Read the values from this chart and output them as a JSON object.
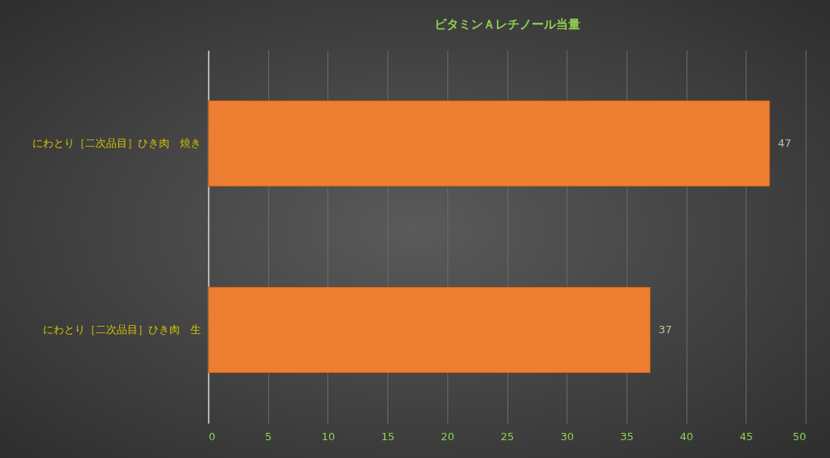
{
  "chart_data": {
    "type": "bar",
    "orientation": "horizontal",
    "title": "ビタミンＡレチノール当量",
    "categories": [
      "にわとり［二次品目］ひき肉　焼き",
      "にわとり［二次品目］ひき肉　生"
    ],
    "values": [
      47,
      37
    ],
    "color": "#ed7d31",
    "xlim": [
      0,
      50
    ],
    "xticks": [
      0,
      5,
      10,
      15,
      20,
      25,
      30,
      35,
      40,
      45,
      50
    ],
    "grid": "x",
    "data_labels": true
  }
}
